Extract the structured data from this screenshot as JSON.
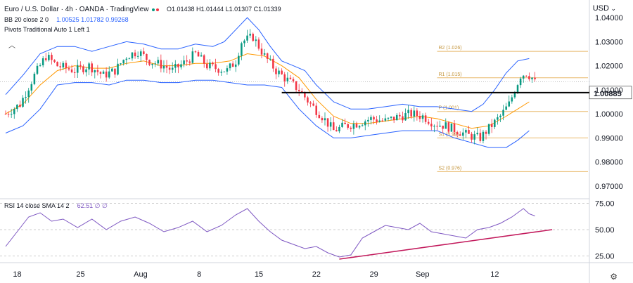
{
  "header": {
    "symbol": "Euro / U.S. Dollar · 4h · OANDA · TradingView",
    "ohlc": "O1.01438 H1.01444 L1.01307 C1.01339",
    "currency": "USD",
    "bb_label": "BB 20 close 2 0",
    "bb_values": "1.00525 1.01782 0.99268",
    "pivots_label": "Pivots Traditional Auto 1 Left 1",
    "rsi_label": "RSI 14 close SMA 14 2",
    "rsi_values": "62.51 ∅ ∅"
  },
  "colors": {
    "bull": "#089981",
    "bear": "#f23645",
    "band": "#2962ff",
    "basis": "#ff9800",
    "pivot": "#e8b86a",
    "rsi": "#7e57c2",
    "trend": "#c2185b",
    "level": "#000000"
  },
  "chart_data": [
    {
      "type": "candlestick",
      "title": "Euro / U.S. Dollar 4h",
      "ylim": [
        0.965,
        1.045
      ],
      "y_ticks": [
        "1.04000",
        "1.03000",
        "1.02000",
        "1.01000",
        "1.00000",
        "0.99000",
        "0.98000",
        "0.97000"
      ],
      "x_ticks": [
        "18",
        "25",
        "Aug",
        "8",
        "15",
        "22",
        "29",
        "Sep",
        "12"
      ],
      "highlight_level": {
        "value": 1.00885,
        "label": "1.00885"
      },
      "pivots": [
        {
          "label": "R2 (1.026)",
          "value": 1.026
        },
        {
          "label": "R1 (1.015)",
          "value": 1.015
        },
        {
          "label": "P (1.001)",
          "value": 1.001
        },
        {
          "label": "S1 (0.99)",
          "value": 0.99
        },
        {
          "label": "S2 (0.976)",
          "value": 0.976
        }
      ],
      "close_path": [
        [
          0,
          1.0
        ],
        [
          5,
          1.004
        ],
        [
          10,
          1.016
        ],
        [
          14,
          1.024
        ],
        [
          18,
          1.02
        ],
        [
          24,
          1.018
        ],
        [
          29,
          1.02
        ],
        [
          34,
          1.016
        ],
        [
          38,
          1.018
        ],
        [
          42,
          1.024
        ],
        [
          46,
          1.026
        ],
        [
          50,
          1.022
        ],
        [
          55,
          1.02
        ],
        [
          58,
          1.018
        ],
        [
          63,
          1.022
        ],
        [
          66,
          1.025
        ],
        [
          70,
          1.02
        ],
        [
          73,
          1.019
        ],
        [
          77,
          1.018
        ],
        [
          80,
          1.022
        ],
        [
          82,
          1.03
        ],
        [
          86,
          1.032
        ],
        [
          90,
          1.024
        ],
        [
          94,
          1.018
        ],
        [
          98,
          1.014
        ],
        [
          102,
          1.01
        ],
        [
          106,
          1.004
        ],
        [
          110,
          0.999
        ],
        [
          114,
          0.993
        ],
        [
          118,
          0.995
        ],
        [
          122,
          0.996
        ],
        [
          127,
          0.998
        ],
        [
          132,
          0.997
        ],
        [
          137,
          0.999
        ],
        [
          141,
          1.0
        ],
        [
          145,
          0.999
        ],
        [
          149,
          0.996
        ],
        [
          153,
          0.995
        ],
        [
          157,
          0.993
        ],
        [
          161,
          0.991
        ],
        [
          165,
          0.99
        ],
        [
          168,
          0.994
        ],
        [
          172,
          0.999
        ],
        [
          175,
          1.004
        ],
        [
          177,
          1.01
        ],
        [
          179,
          1.016
        ],
        [
          181,
          1.017
        ],
        [
          183,
          1.015
        ],
        [
          184,
          1.013
        ]
      ],
      "bb_upper_path": [
        [
          0,
          1.008
        ],
        [
          6,
          1.016
        ],
        [
          12,
          1.025
        ],
        [
          18,
          1.028
        ],
        [
          24,
          1.028
        ],
        [
          30,
          1.026
        ],
        [
          36,
          1.028
        ],
        [
          42,
          1.03
        ],
        [
          48,
          1.029
        ],
        [
          54,
          1.027
        ],
        [
          60,
          1.027
        ],
        [
          66,
          1.029
        ],
        [
          72,
          1.028
        ],
        [
          76,
          1.03
        ],
        [
          80,
          1.035
        ],
        [
          84,
          1.04
        ],
        [
          88,
          1.035
        ],
        [
          92,
          1.028
        ],
        [
          96,
          1.022
        ],
        [
          100,
          1.02
        ],
        [
          104,
          1.018
        ],
        [
          108,
          1.012
        ],
        [
          114,
          1.005
        ],
        [
          120,
          1.002
        ],
        [
          126,
          1.002
        ],
        [
          132,
          1.003
        ],
        [
          138,
          1.004
        ],
        [
          144,
          1.003
        ],
        [
          150,
          1.003
        ],
        [
          156,
          1.002
        ],
        [
          162,
          1.001
        ],
        [
          166,
          1.004
        ],
        [
          170,
          1.01
        ],
        [
          174,
          1.017
        ],
        [
          178,
          1.022
        ],
        [
          182,
          1.023
        ]
      ],
      "bb_middle_path": [
        [
          0,
          1.0
        ],
        [
          6,
          1.004
        ],
        [
          12,
          1.012
        ],
        [
          18,
          1.018
        ],
        [
          24,
          1.02
        ],
        [
          30,
          1.019
        ],
        [
          36,
          1.019
        ],
        [
          42,
          1.021
        ],
        [
          48,
          1.022
        ],
        [
          54,
          1.02
        ],
        [
          60,
          1.02
        ],
        [
          66,
          1.021
        ],
        [
          72,
          1.021
        ],
        [
          78,
          1.022
        ],
        [
          84,
          1.025
        ],
        [
          90,
          1.024
        ],
        [
          96,
          1.02
        ],
        [
          102,
          1.015
        ],
        [
          108,
          1.006
        ],
        [
          114,
          0.999
        ],
        [
          120,
          0.996
        ],
        [
          126,
          0.996
        ],
        [
          132,
          0.997
        ],
        [
          138,
          0.998
        ],
        [
          144,
          0.999
        ],
        [
          150,
          0.998
        ],
        [
          156,
          0.996
        ],
        [
          162,
          0.994
        ],
        [
          168,
          0.995
        ],
        [
          174,
          0.999
        ],
        [
          178,
          1.002
        ],
        [
          182,
          1.005
        ]
      ],
      "bb_lower_path": [
        [
          0,
          0.992
        ],
        [
          6,
          0.995
        ],
        [
          12,
          1.002
        ],
        [
          18,
          1.012
        ],
        [
          24,
          1.013
        ],
        [
          30,
          1.013
        ],
        [
          36,
          1.012
        ],
        [
          42,
          1.014
        ],
        [
          48,
          1.014
        ],
        [
          54,
          1.013
        ],
        [
          60,
          1.013
        ],
        [
          66,
          1.014
        ],
        [
          72,
          1.014
        ],
        [
          78,
          1.013
        ],
        [
          84,
          1.012
        ],
        [
          90,
          1.012
        ],
        [
          96,
          1.011
        ],
        [
          102,
          1.002
        ],
        [
          108,
          0.995
        ],
        [
          114,
          0.99
        ],
        [
          120,
          0.99
        ],
        [
          126,
          0.991
        ],
        [
          132,
          0.992
        ],
        [
          138,
          0.993
        ],
        [
          144,
          0.993
        ],
        [
          150,
          0.993
        ],
        [
          156,
          0.99
        ],
        [
          162,
          0.988
        ],
        [
          168,
          0.986
        ],
        [
          174,
          0.986
        ],
        [
          178,
          0.989
        ],
        [
          182,
          0.993
        ]
      ]
    },
    {
      "type": "line",
      "title": "RSI 14 close SMA 14 2",
      "ylim": [
        20,
        78
      ],
      "y_ticks": [
        "75.00",
        "50.00",
        "25.00"
      ],
      "rsi_path": [
        [
          0,
          34
        ],
        [
          4,
          48
        ],
        [
          8,
          62
        ],
        [
          12,
          66
        ],
        [
          16,
          58
        ],
        [
          20,
          60
        ],
        [
          25,
          52
        ],
        [
          30,
          60
        ],
        [
          35,
          50
        ],
        [
          40,
          58
        ],
        [
          45,
          62
        ],
        [
          50,
          56
        ],
        [
          55,
          48
        ],
        [
          60,
          52
        ],
        [
          65,
          58
        ],
        [
          70,
          48
        ],
        [
          75,
          54
        ],
        [
          80,
          64
        ],
        [
          84,
          70
        ],
        [
          88,
          58
        ],
        [
          92,
          48
        ],
        [
          96,
          40
        ],
        [
          100,
          36
        ],
        [
          104,
          32
        ],
        [
          108,
          34
        ],
        [
          112,
          28
        ],
        [
          116,
          24
        ],
        [
          120,
          26
        ],
        [
          124,
          42
        ],
        [
          128,
          48
        ],
        [
          132,
          54
        ],
        [
          136,
          52
        ],
        [
          140,
          50
        ],
        [
          144,
          56
        ],
        [
          148,
          48
        ],
        [
          152,
          46
        ],
        [
          156,
          44
        ],
        [
          160,
          42
        ],
        [
          164,
          50
        ],
        [
          168,
          52
        ],
        [
          172,
          56
        ],
        [
          176,
          62
        ],
        [
          180,
          70
        ],
        [
          182,
          65
        ],
        [
          184,
          63
        ]
      ],
      "trendline": [
        [
          116,
          22
        ],
        [
          190,
          50
        ]
      ]
    }
  ]
}
